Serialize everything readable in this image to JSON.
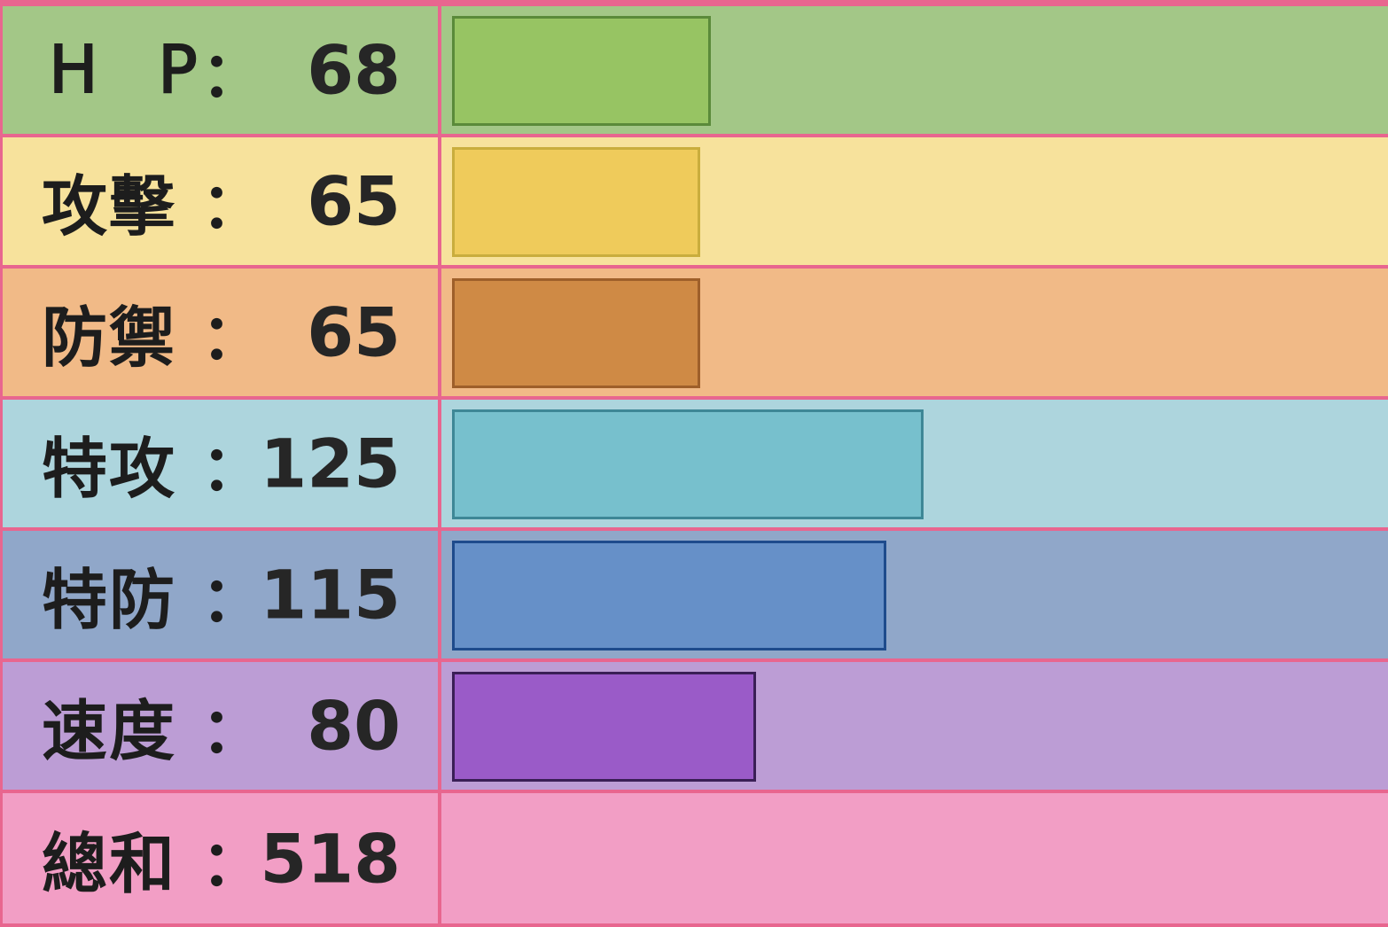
{
  "chart_data": {
    "type": "bar",
    "categories": [
      "H P",
      "攻擊",
      "防禦",
      "特攻",
      "特防",
      "速度"
    ],
    "values": [
      68,
      65,
      65,
      125,
      115,
      80
    ],
    "total_label": "總和",
    "total_value": 518,
    "colon": "：",
    "xlim": [
      0,
      255
    ]
  },
  "rows": [
    {
      "name": "H P",
      "value": "68",
      "row_color": "#a3c787",
      "bar_color": "#97c463",
      "bar_border": "#5a8a3a"
    },
    {
      "name": "攻擊",
      "value": "65",
      "row_color": "#f7e29c",
      "bar_color": "#efcb5b",
      "bar_border": "#c9ad3d"
    },
    {
      "name": "防禦",
      "value": "65",
      "row_color": "#f1ba87",
      "bar_color": "#cf8a45",
      "bar_border": "#9e5f2a"
    },
    {
      "name": "特攻",
      "value": "125",
      "row_color": "#add5dd",
      "bar_color": "#77c0cd",
      "bar_border": "#3e8796"
    },
    {
      "name": "特防",
      "value": "115",
      "row_color": "#90a7c9",
      "bar_color": "#6690c8",
      "bar_border": "#1e4b8c"
    },
    {
      "name": "速度",
      "value": "80",
      "row_color": "#bc9dd5",
      "bar_color": "#9a5bc8",
      "bar_border": "#3a1f56"
    },
    {
      "name": "總和",
      "value": "518",
      "row_color": "#f29ec5"
    }
  ]
}
